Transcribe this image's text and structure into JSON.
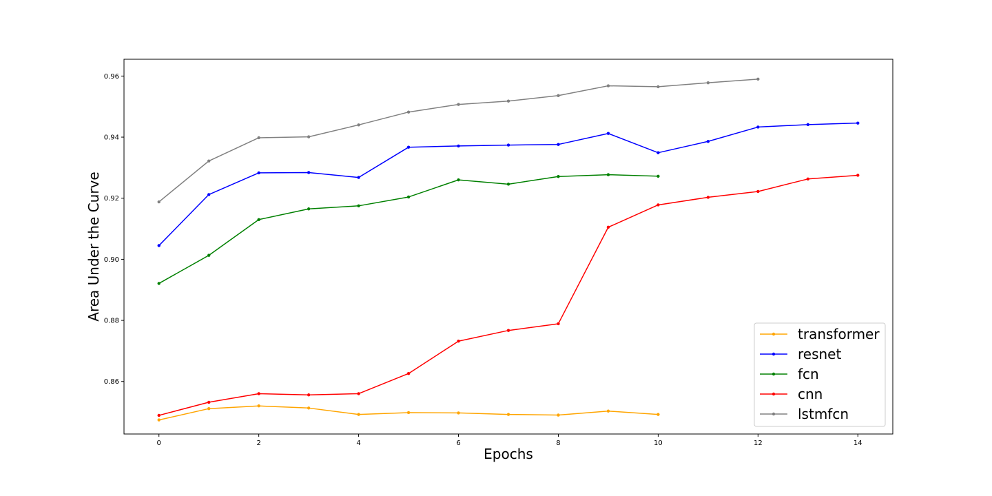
{
  "chart_data": {
    "type": "line",
    "title": "",
    "xlabel": "Epochs",
    "ylabel": "Area Under the Curve",
    "xlim": [
      -0.7,
      14.7
    ],
    "ylim": [
      0.8428,
      0.9655
    ],
    "xticks": [
      0,
      2,
      4,
      6,
      8,
      10,
      12,
      14
    ],
    "yticks": [
      0.86,
      0.88,
      0.9,
      0.92,
      0.94,
      0.96
    ],
    "ytick_labels": [
      "0.86",
      "0.88",
      "0.90",
      "0.92",
      "0.94",
      "0.96"
    ],
    "grid": false,
    "legend_position": "lower-right",
    "series": [
      {
        "name": "transformer",
        "color": "#ffa500",
        "x": [
          0,
          1,
          2,
          3,
          4,
          5,
          6,
          7,
          8,
          9,
          10
        ],
        "values": [
          0.8474,
          0.8511,
          0.852,
          0.8513,
          0.8492,
          0.8498,
          0.8497,
          0.8492,
          0.849,
          0.8503,
          0.8492
        ]
      },
      {
        "name": "resnet",
        "color": "#0000ff",
        "x": [
          0,
          1,
          2,
          3,
          4,
          5,
          6,
          7,
          8,
          9,
          10,
          11,
          12,
          13,
          14
        ],
        "values": [
          0.9045,
          0.9212,
          0.9283,
          0.9284,
          0.9268,
          0.9367,
          0.9371,
          0.9374,
          0.9376,
          0.9412,
          0.9349,
          0.9386,
          0.9433,
          0.9441,
          0.9446
        ]
      },
      {
        "name": "fcn",
        "color": "#008000",
        "x": [
          0,
          1,
          2,
          3,
          4,
          5,
          6,
          7,
          8,
          9,
          10
        ],
        "values": [
          0.8921,
          0.9013,
          0.913,
          0.9165,
          0.9175,
          0.9204,
          0.926,
          0.9246,
          0.9271,
          0.9277,
          0.9272
        ]
      },
      {
        "name": "cnn",
        "color": "#ff0000",
        "x": [
          0,
          1,
          2,
          3,
          4,
          5,
          6,
          7,
          8,
          9,
          10,
          11,
          12,
          13,
          14
        ],
        "values": [
          0.8489,
          0.8532,
          0.856,
          0.8556,
          0.856,
          0.8626,
          0.8732,
          0.8767,
          0.8789,
          0.9105,
          0.9178,
          0.9203,
          0.9222,
          0.9263,
          0.9275
        ]
      },
      {
        "name": "lstmfcn",
        "color": "#808080",
        "x": [
          0,
          1,
          2,
          3,
          4,
          5,
          6,
          7,
          8,
          9,
          10,
          11,
          12
        ],
        "values": [
          0.9188,
          0.9322,
          0.9398,
          0.9401,
          0.944,
          0.9482,
          0.9507,
          0.9518,
          0.9536,
          0.9568,
          0.9565,
          0.9578,
          0.959
        ]
      }
    ]
  }
}
